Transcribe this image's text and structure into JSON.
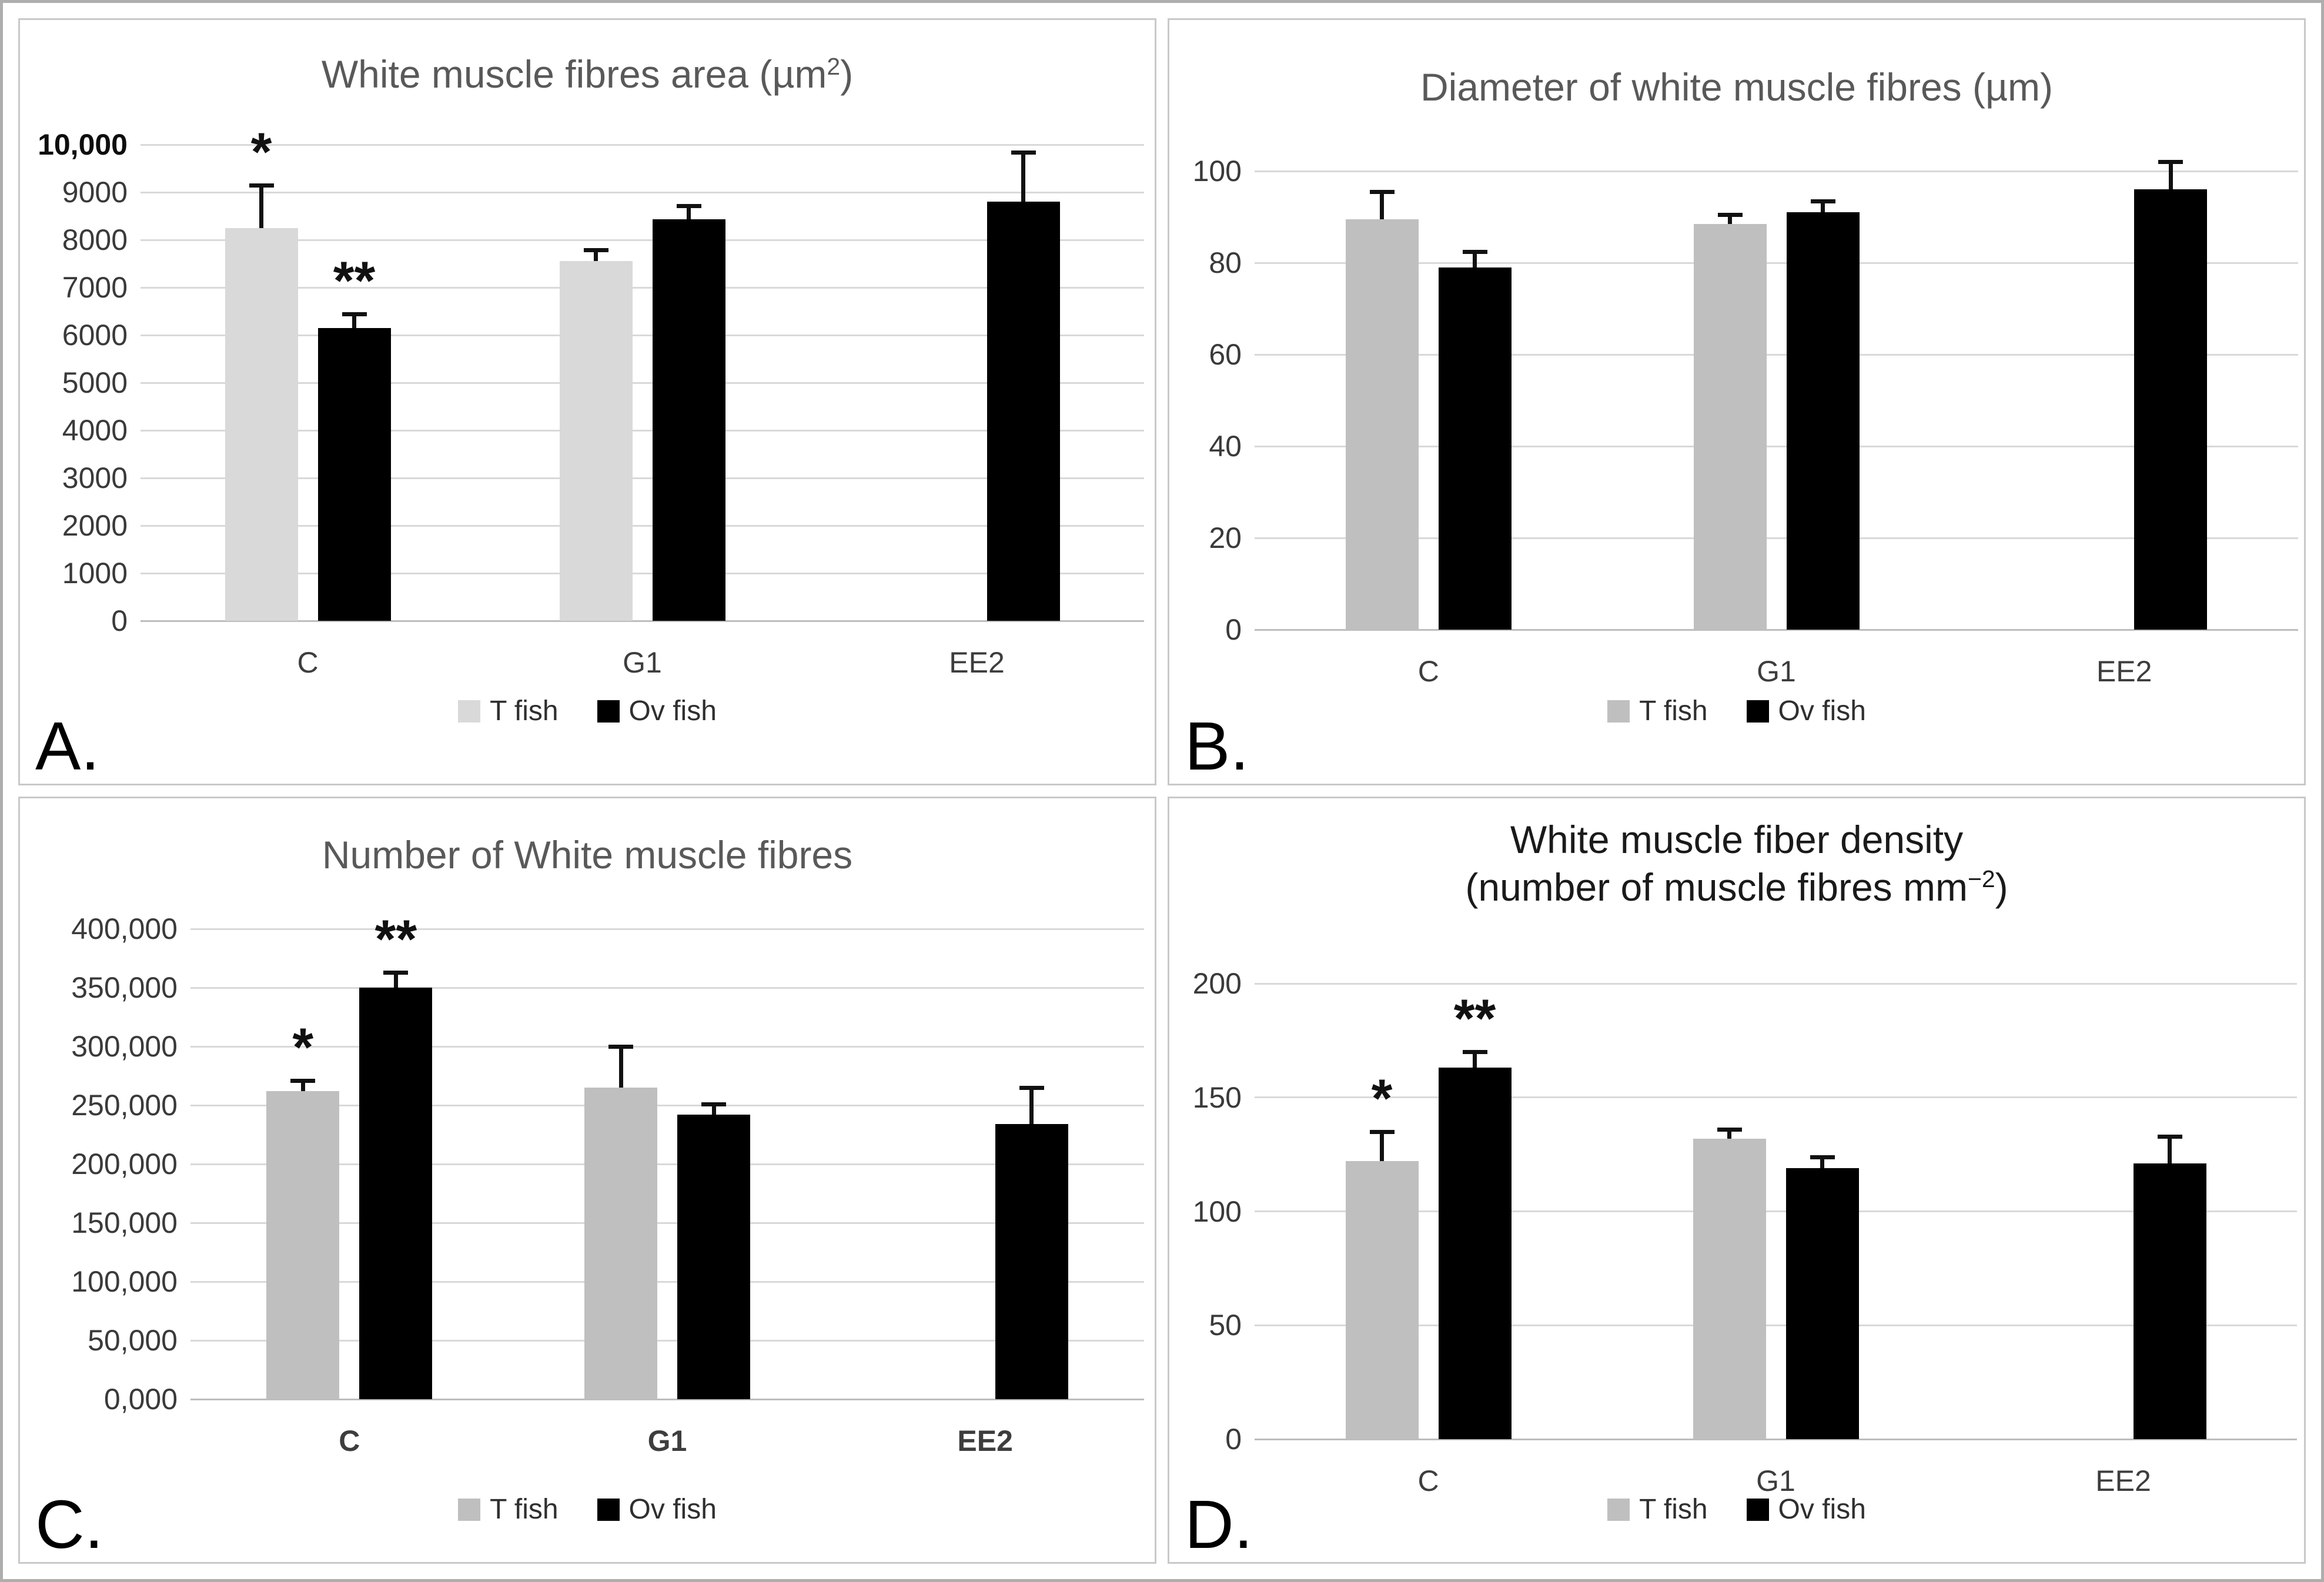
{
  "chart_data": [
    {
      "type": "bar",
      "panel_label": "A.",
      "title_lines": [
        [
          {
            "t": "White muscle fibres area (µm"
          },
          {
            "t": "2",
            "sup": true
          },
          {
            "t": ")"
          }
        ]
      ],
      "title_text": "White muscle fibres area (µm2)",
      "categories": [
        "C",
        "G1",
        "EE2"
      ],
      "series": [
        {
          "name": "T fish",
          "color": "#d9d9d9",
          "values": [
            8250,
            7550,
            null
          ],
          "errors": [
            900,
            240,
            null
          ],
          "annotations": [
            "*",
            null,
            null
          ]
        },
        {
          "name": "Ov fish",
          "color": "#000000",
          "values": [
            6150,
            8430,
            8800
          ],
          "errors": [
            300,
            290,
            1040
          ],
          "annotations": [
            "**",
            null,
            null
          ]
        }
      ],
      "ylim": [
        0,
        10000
      ],
      "ytick_step": 1000,
      "ytick_labels_top_to_bottom": [
        "10,000",
        "9000",
        "8000",
        "7000",
        "6000",
        "5000",
        "4000",
        "3000",
        "2000",
        "1000",
        "0"
      ],
      "grid": true,
      "legend_position": "bottom",
      "legend_items": [
        {
          "label": "T fish",
          "color": "#d9d9d9"
        },
        {
          "label": "Ov fish",
          "color": "#000000"
        }
      ]
    },
    {
      "type": "bar",
      "panel_label": "B.",
      "title_lines": [
        [
          {
            "t": "Diameter of white muscle fibres (µm)"
          }
        ]
      ],
      "title_text": "Diameter of white muscle fibres (µm)",
      "categories": [
        "C",
        "G1",
        "EE2"
      ],
      "series": [
        {
          "name": "T fish",
          "color": "#bfbfbf",
          "values": [
            89.5,
            88.5,
            null
          ],
          "errors": [
            6,
            2,
            null
          ],
          "annotations": [
            null,
            null,
            null
          ]
        },
        {
          "name": "Ov fish",
          "color": "#000000",
          "values": [
            79,
            91,
            96
          ],
          "errors": [
            3.5,
            2.5,
            6
          ],
          "annotations": [
            null,
            null,
            null
          ]
        }
      ],
      "ylim": [
        0,
        100
      ],
      "ytick_step": 20,
      "ytick_labels_top_to_bottom": [
        "100",
        "80",
        "60",
        "40",
        "20",
        "0"
      ],
      "grid": true,
      "legend_position": "bottom",
      "legend_items": [
        {
          "label": "T fish",
          "color": "#bfbfbf"
        },
        {
          "label": "Ov fish",
          "color": "#000000"
        }
      ]
    },
    {
      "type": "bar",
      "panel_label": "C.",
      "title_lines": [
        [
          {
            "t": "Number of White muscle fibres"
          }
        ]
      ],
      "title_text": "Number of White muscle fibres",
      "categories": [
        "C",
        "G1",
        "EE2"
      ],
      "series": [
        {
          "name": "T fish",
          "color": "#bfbfbf",
          "values": [
            262000,
            265000,
            null
          ],
          "errors": [
            9000,
            35000,
            null
          ],
          "annotations": [
            "*",
            null,
            null
          ]
        },
        {
          "name": "Ov fish",
          "color": "#000000",
          "values": [
            350000,
            242000,
            234000
          ],
          "errors": [
            13000,
            9000,
            31000
          ],
          "annotations": [
            "**",
            null,
            null
          ]
        }
      ],
      "ylim": [
        0,
        400000
      ],
      "ytick_step": 50000,
      "ytick_labels_top_to_bottom": [
        "400,000",
        "350,000",
        "300,000",
        "250,000",
        "200,000",
        "150,000",
        "100,000",
        "50,000",
        "0,000"
      ],
      "grid": true,
      "legend_position": "bottom",
      "legend_items": [
        {
          "label": "T fish",
          "color": "#bfbfbf"
        },
        {
          "label": "Ov fish",
          "color": "#000000"
        }
      ]
    },
    {
      "type": "bar",
      "panel_label": "D.",
      "title_lines": [
        [
          {
            "t": "White muscle fiber density"
          }
        ],
        [
          {
            "t": "(number of muscle fibres mm"
          },
          {
            "t": "−2",
            "sup": true
          },
          {
            "t": ")"
          }
        ]
      ],
      "title_text": "White muscle fiber density (number of muscle fibres mm-2)",
      "categories": [
        "C",
        "G1",
        "EE2"
      ],
      "series": [
        {
          "name": "T fish",
          "color": "#bfbfbf",
          "values": [
            122,
            132,
            null
          ],
          "errors": [
            13,
            4,
            null
          ],
          "annotations": [
            "*",
            null,
            null
          ]
        },
        {
          "name": "Ov fish",
          "color": "#000000",
          "values": [
            163,
            119,
            121
          ],
          "errors": [
            7,
            5,
            12
          ],
          "annotations": [
            "**",
            null,
            null
          ]
        }
      ],
      "ylim": [
        0,
        200
      ],
      "ytick_step": 50,
      "ytick_labels_top_to_bottom": [
        "200",
        "150",
        "100",
        "50",
        "0"
      ],
      "grid": true,
      "legend_position": "bottom",
      "legend_items": [
        {
          "label": "T fish",
          "color": "#bfbfbf"
        },
        {
          "label": "Ov fish",
          "color": "#000000"
        }
      ]
    }
  ]
}
